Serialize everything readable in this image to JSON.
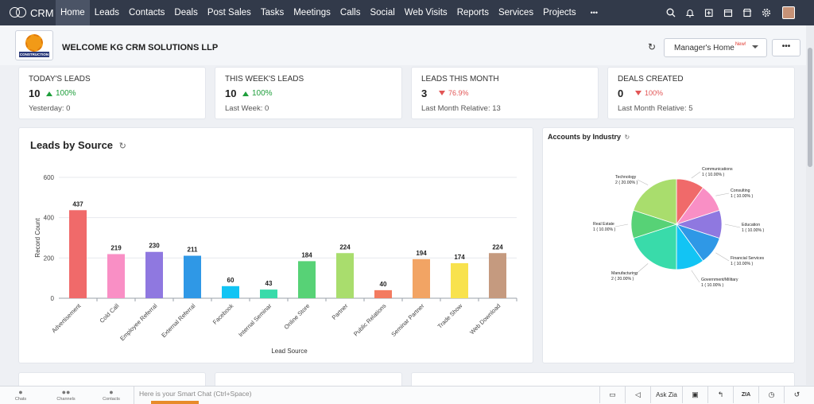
{
  "nav": {
    "logo_text": "CRM",
    "items": [
      "Home",
      "Leads",
      "Contacts",
      "Deals",
      "Post Sales",
      "Tasks",
      "Meetings",
      "Calls",
      "Social",
      "Web Visits",
      "Reports",
      "Services",
      "Projects",
      "•••"
    ],
    "active": "Home",
    "right_icons": [
      "search-icon",
      "bell-icon",
      "add-icon",
      "calendar-icon",
      "store-icon",
      "gear-icon"
    ]
  },
  "header": {
    "company_logo_text": "CONSTRUCTION",
    "welcome": "WELCOME KG CRM SOLUTIONS LLP",
    "home_select": "Manager's Home",
    "home_select_badge": "New!",
    "more": "•••"
  },
  "kpis": [
    {
      "title": "TODAY'S LEADS",
      "value": "10",
      "change": "100%",
      "direction": "up",
      "sub": "Yesterday: 0"
    },
    {
      "title": "THIS WEEK'S LEADS",
      "value": "10",
      "change": "100%",
      "direction": "up",
      "sub": "Last Week: 0"
    },
    {
      "title": "LEADS THIS MONTH",
      "value": "3",
      "change": "76.9%",
      "direction": "down",
      "sub": "Last Month Relative: 13"
    },
    {
      "title": "DEALS CREATED",
      "value": "0",
      "change": "100%",
      "direction": "down",
      "sub": "Last Month Relative: 5"
    }
  ],
  "leads_panel": {
    "title": "Leads by Source"
  },
  "accounts_panel": {
    "title": "Accounts by Industry"
  },
  "chart_data": [
    {
      "type": "bar",
      "title": "Leads by Source",
      "xlabel": "Lead Source",
      "ylabel": "Record Count",
      "ylim": [
        0,
        600
      ],
      "yticks": [
        0,
        200,
        400,
        600
      ],
      "grid": true,
      "categories": [
        "Advertisement",
        "Cold Call",
        "Employee Referral",
        "External Referral",
        "Facebook",
        "Internal Seminar",
        "Online Store",
        "Partner",
        "Public Relations",
        "Seminar Partner",
        "Trade Show",
        "Web Download"
      ],
      "values": [
        437,
        219,
        230,
        211,
        60,
        43,
        184,
        224,
        40,
        194,
        174,
        224
      ],
      "colors": [
        "#f06a6a",
        "#f98fc5",
        "#8f78e0",
        "#2f98e6",
        "#12c4f4",
        "#39dbaa",
        "#57d276",
        "#a9dd6d",
        "#f37b60",
        "#f2a464",
        "#f8e24d",
        "#c59a7f"
      ]
    },
    {
      "type": "pie",
      "title": "Accounts by Industry",
      "slices": [
        {
          "label": "Communications",
          "value": 1,
          "pct": "1 ( 10.00% )",
          "color": "#f06a6a"
        },
        {
          "label": "Consulting",
          "value": 1,
          "pct": "1 ( 10.00% )",
          "color": "#f98fc5"
        },
        {
          "label": "Education",
          "value": 1,
          "pct": "1 ( 10.00% )",
          "color": "#8f78e0"
        },
        {
          "label": "Financial Services",
          "value": 1,
          "pct": "1 ( 10.00% )",
          "color": "#2f98e6"
        },
        {
          "label": "Government/Military",
          "value": 1,
          "pct": "1 ( 10.00% )",
          "color": "#12c4f4"
        },
        {
          "label": "Manufacturing",
          "value": 2,
          "pct": "2 ( 20.00% )",
          "color": "#39dbaa"
        },
        {
          "label": "Real Estate",
          "value": 1,
          "pct": "1 ( 10.00% )",
          "color": "#57d276"
        },
        {
          "label": "Technology",
          "value": 2,
          "pct": "2 ( 20.00% )",
          "color": "#a9dd6d"
        }
      ]
    }
  ],
  "bottombar": {
    "items": [
      "Chats",
      "Channels",
      "Contacts"
    ],
    "smartchat_placeholder": "Here is your Smart Chat (Ctrl+Space)",
    "ask_zia": "Ask Zia"
  }
}
